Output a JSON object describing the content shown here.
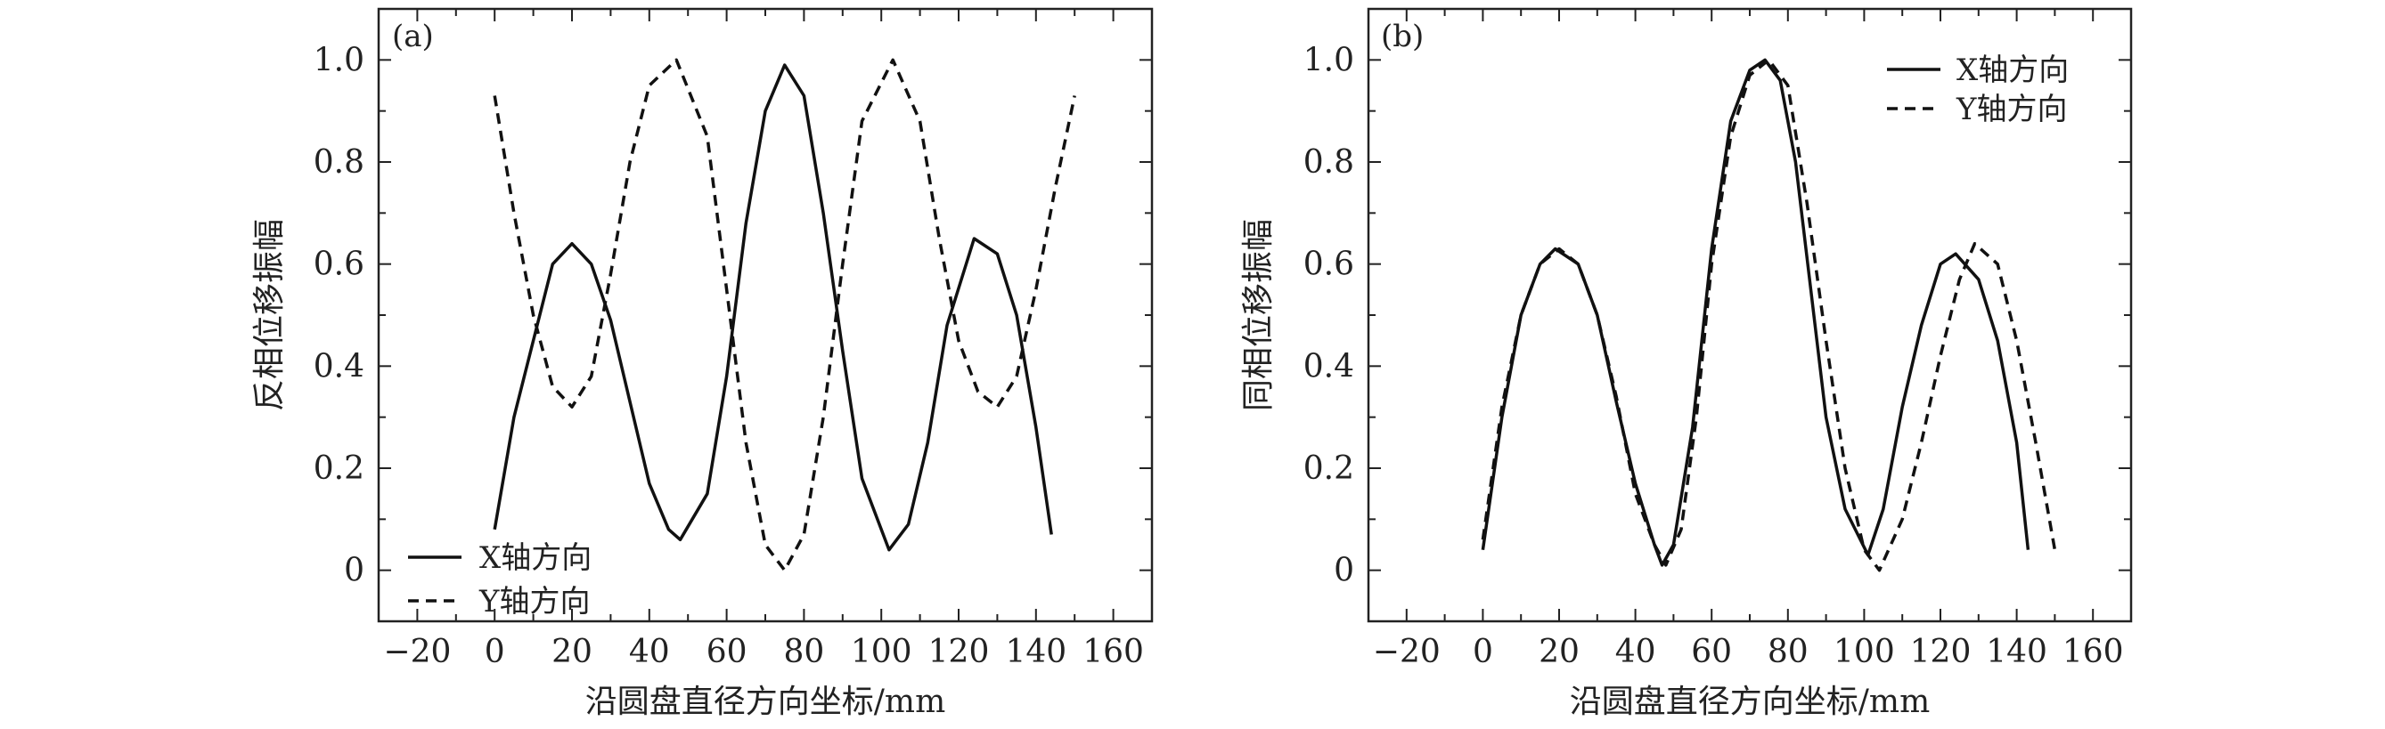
{
  "chart_data": [
    {
      "type": "line",
      "panel_label": "(a)",
      "xlabel": "沿圆盘直径方向坐标/mm",
      "ylabel": "反相位移振幅",
      "xlim": [
        -30,
        170
      ],
      "ylim": [
        -0.1,
        1.1
      ],
      "xticks": [
        -20,
        0,
        20,
        40,
        60,
        80,
        100,
        120,
        140,
        160
      ],
      "xtick_labels": [
        "−20",
        "0",
        "20",
        "40",
        "60",
        "80",
        "100",
        "120",
        "140",
        "160"
      ],
      "yticks": [
        0,
        0.2,
        0.4,
        0.6,
        0.8,
        1.0
      ],
      "ytick_labels": [
        "0",
        "0.2",
        "0.4",
        "0.6",
        "0.8",
        "1.0"
      ],
      "legend_position": "bottom-left",
      "series": [
        {
          "name": "X轴方向",
          "style": "solid",
          "x": [
            0,
            5,
            10,
            15,
            20,
            25,
            30,
            35,
            40,
            45,
            48,
            55,
            60,
            65,
            70,
            75,
            80,
            85,
            90,
            95,
            102,
            107,
            112,
            117,
            124,
            130,
            135,
            140,
            144
          ],
          "y": [
            0.08,
            0.3,
            0.45,
            0.6,
            0.64,
            0.6,
            0.49,
            0.33,
            0.17,
            0.08,
            0.06,
            0.15,
            0.38,
            0.68,
            0.9,
            0.99,
            0.93,
            0.7,
            0.43,
            0.18,
            0.04,
            0.09,
            0.25,
            0.48,
            0.65,
            0.62,
            0.5,
            0.28,
            0.07
          ]
        },
        {
          "name": "Y轴方向",
          "style": "dashed",
          "x": [
            0,
            5,
            10,
            15,
            20,
            25,
            30,
            35,
            40,
            47,
            55,
            60,
            65,
            70,
            75,
            80,
            85,
            90,
            95,
            103,
            110,
            115,
            120,
            125,
            130,
            135,
            140,
            145,
            150
          ],
          "y": [
            0.93,
            0.7,
            0.5,
            0.36,
            0.32,
            0.38,
            0.58,
            0.8,
            0.95,
            1.0,
            0.85,
            0.55,
            0.25,
            0.05,
            0.0,
            0.07,
            0.3,
            0.6,
            0.88,
            1.0,
            0.88,
            0.65,
            0.45,
            0.35,
            0.32,
            0.38,
            0.55,
            0.75,
            0.93
          ]
        }
      ]
    },
    {
      "type": "line",
      "panel_label": "(b)",
      "xlabel": "沿圆盘直径方向坐标/mm",
      "ylabel": "同相位移振幅",
      "xlim": [
        -30,
        170
      ],
      "ylim": [
        -0.1,
        1.1
      ],
      "xticks": [
        -20,
        0,
        20,
        40,
        60,
        80,
        100,
        120,
        140,
        160
      ],
      "xtick_labels": [
        "−20",
        "0",
        "20",
        "40",
        "60",
        "80",
        "100",
        "120",
        "140",
        "160"
      ],
      "yticks": [
        0,
        0.2,
        0.4,
        0.6,
        0.8,
        1.0
      ],
      "ytick_labels": [
        "0",
        "0.2",
        "0.4",
        "0.6",
        "0.8",
        "1.0"
      ],
      "legend_position": "top-right",
      "series": [
        {
          "name": "X轴方向",
          "style": "solid",
          "x": [
            0,
            5,
            10,
            15,
            19,
            25,
            30,
            35,
            40,
            45,
            47,
            50,
            55,
            60,
            65,
            70,
            74,
            78,
            82,
            86,
            90,
            95,
            101,
            105,
            110,
            115,
            120,
            124,
            130,
            135,
            140,
            143
          ],
          "y": [
            0.04,
            0.3,
            0.5,
            0.6,
            0.63,
            0.6,
            0.5,
            0.33,
            0.17,
            0.05,
            0.01,
            0.05,
            0.28,
            0.63,
            0.88,
            0.98,
            1.0,
            0.96,
            0.8,
            0.55,
            0.3,
            0.12,
            0.03,
            0.12,
            0.32,
            0.48,
            0.6,
            0.62,
            0.57,
            0.45,
            0.25,
            0.04
          ]
        },
        {
          "name": "Y轴方向",
          "style": "dashed",
          "x": [
            0,
            5,
            10,
            15,
            20,
            25,
            30,
            35,
            40,
            45,
            48,
            52,
            56,
            60,
            65,
            70,
            75,
            80,
            85,
            90,
            95,
            100,
            104,
            110,
            115,
            120,
            125,
            129,
            135,
            140,
            145,
            150
          ],
          "y": [
            0.06,
            0.32,
            0.5,
            0.6,
            0.63,
            0.6,
            0.5,
            0.34,
            0.15,
            0.05,
            0.01,
            0.08,
            0.3,
            0.6,
            0.85,
            0.97,
            1.0,
            0.95,
            0.72,
            0.45,
            0.2,
            0.04,
            0.0,
            0.1,
            0.25,
            0.42,
            0.57,
            0.64,
            0.6,
            0.45,
            0.25,
            0.04
          ]
        }
      ]
    }
  ]
}
